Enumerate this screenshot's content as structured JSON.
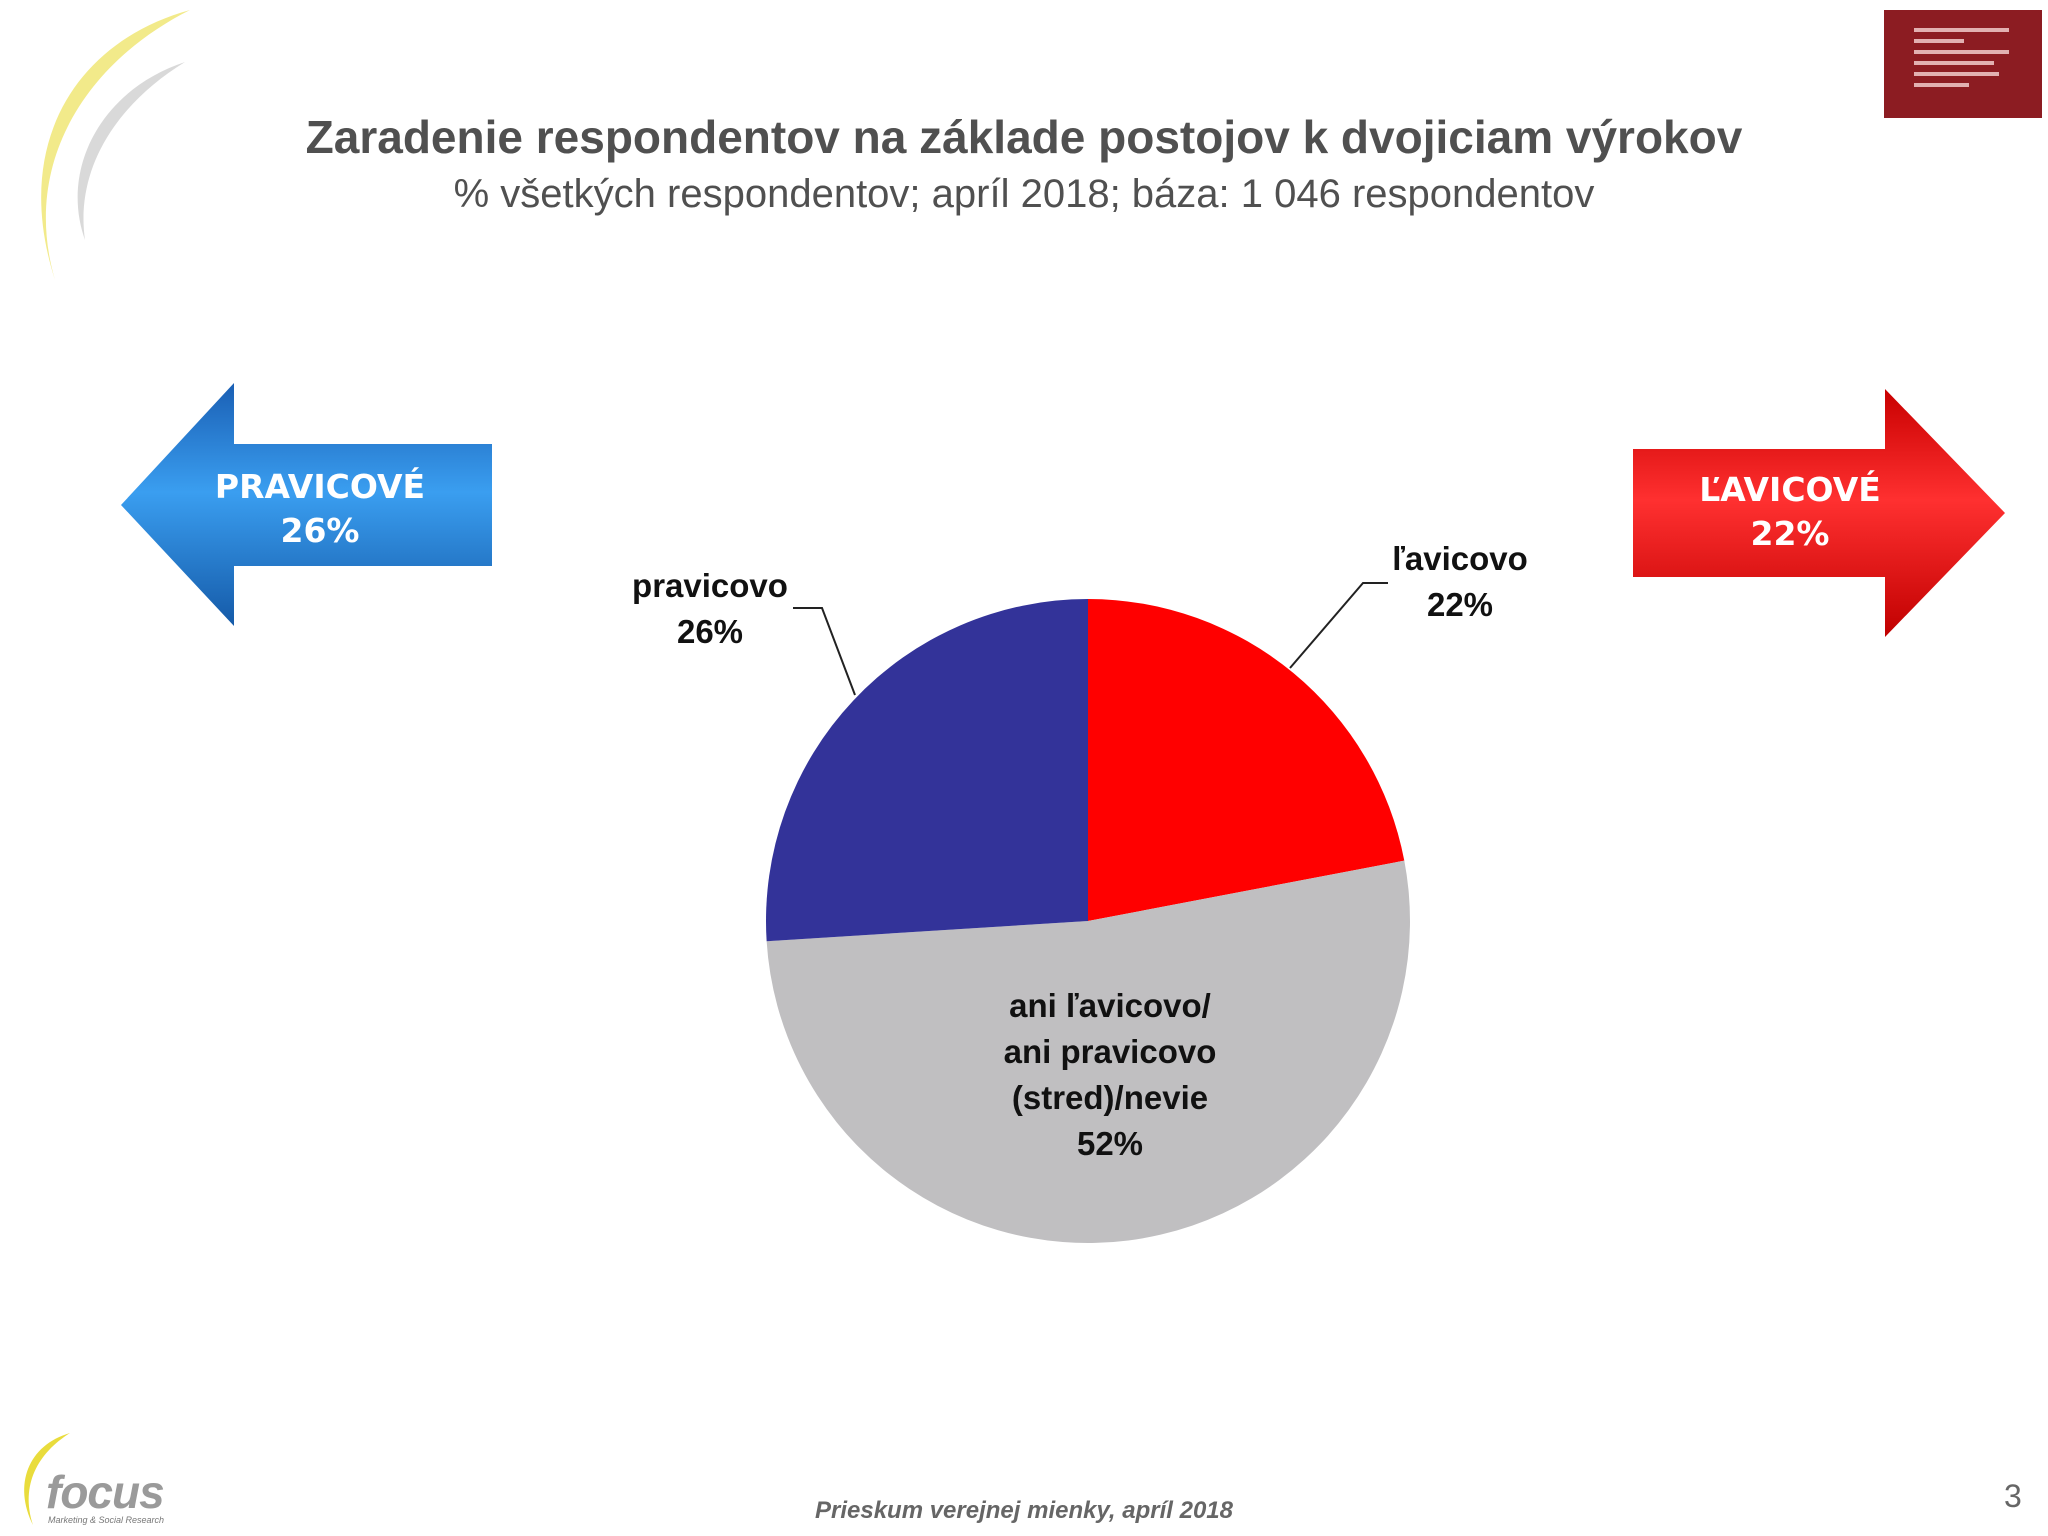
{
  "header": {
    "title": "Zaradenie respondentov na základe postojov k dvojiciam výrokov",
    "subtitle": "% všetkých respondentov; apríl 2018; báza: 1 046 respondentov"
  },
  "arrows": {
    "left": {
      "line1": "PRAVICOVÉ",
      "line2": "26%",
      "color": "#1e78d2"
    },
    "right": {
      "line1": "ĽAVICOVÉ",
      "line2": "22%",
      "color": "#e81010"
    }
  },
  "chart_data": {
    "type": "pie",
    "title": "Zaradenie respondentov na základe postojov k dvojiciam výrokov",
    "subtitle": "% všetkých respondentov; apríl 2018; báza: 1 046 respondentov",
    "series": [
      {
        "values": [
          22,
          52,
          26
        ],
        "slices": [
          {
            "lines": [
              "ľavicovo",
              "22%"
            ],
            "value": 22,
            "color": "#ff0000"
          },
          {
            "lines": [
              "ani ľavicovo/",
              "ani pravicovo",
              "(stred)/nevie",
              "52%"
            ],
            "value": 52,
            "color": "#c0bfc1"
          },
          {
            "lines": [
              "pravicovo",
              "26%"
            ],
            "value": 26,
            "color": "#333399"
          }
        ]
      }
    ],
    "start_angle_deg": 0,
    "direction": "clockwise"
  },
  "footer": {
    "survey": "Prieskum verejnej mienky, apríl 2018",
    "page_number": "3"
  },
  "logos": {
    "focus_word": "focus",
    "focus_tag": "Marketing & Social Research",
    "institute_color": "#8c1c22"
  }
}
